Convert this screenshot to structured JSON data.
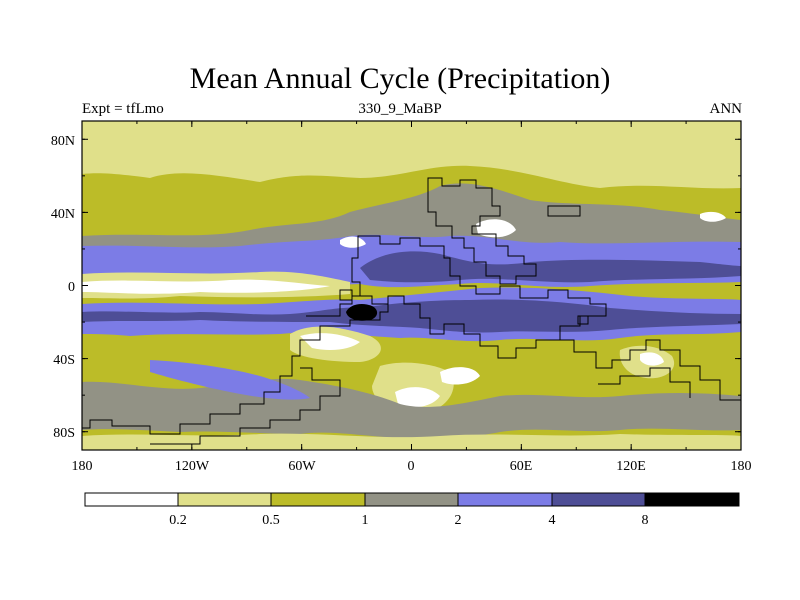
{
  "title": "Mean Annual Cycle (Precipitation)",
  "subtitle_left": "Expt = tfLmo",
  "subtitle_center": "330_9_MaBP",
  "subtitle_right": "ANN",
  "lat_labels": [
    "80N",
    "40N",
    "0",
    "40S",
    "80S"
  ],
  "lon_labels": [
    "180",
    "120W",
    "60W",
    "0",
    "60E",
    "120E",
    "180"
  ],
  "colorbar_labels": [
    "0.2",
    "0.5",
    "1",
    "2",
    "4",
    "8"
  ],
  "colors": {
    "c0": "#ffffff",
    "c1": "#e0e08a",
    "c2": "#bcbc28",
    "c3": "#929285",
    "c4": "#7c7ce6",
    "c5": "#4e4e96",
    "c6": "#000000"
  },
  "chart_data": {
    "type": "heatmap",
    "title": "Mean Annual Cycle (Precipitation)",
    "variable": "Precipitation",
    "experiment": "tfLmo",
    "period": "330_9_MaBP",
    "season": "ANN",
    "xrange": [
      -180,
      180
    ],
    "yrange": [
      -90,
      90
    ],
    "xticks": [
      -180,
      -120,
      -60,
      0,
      60,
      120,
      180
    ],
    "yticks": [
      80,
      40,
      0,
      -40,
      -80
    ],
    "levels": [
      0.2,
      0.5,
      1,
      2,
      4,
      8
    ]
  }
}
